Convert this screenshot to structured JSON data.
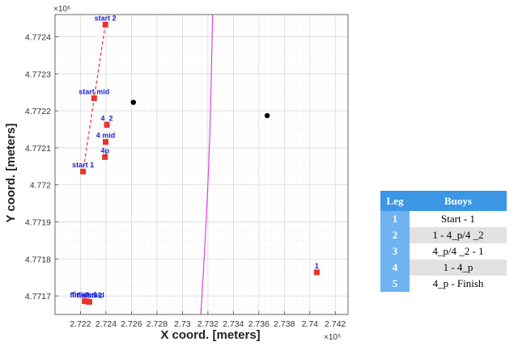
{
  "chart_data": {
    "type": "scatter",
    "xlabel": "X coord. [meters]",
    "ylabel": "Y coord. [meters]",
    "x_exponent_label": "×10⁵",
    "y_exponent_label": "×10⁶",
    "xlim": [
      272000,
      274300
    ],
    "ylim": [
      4771650,
      4772460
    ],
    "x_ticks": [
      272200,
      272400,
      272600,
      272800,
      273000,
      273200,
      273400,
      273600,
      273800,
      274000,
      274200
    ],
    "x_tick_labels": [
      "2.722",
      "2.724",
      "2.726",
      "2.728",
      "2.73",
      "2.732",
      "2.734",
      "2.736",
      "2.738",
      "2.74",
      "2.742"
    ],
    "y_ticks": [
      4771700,
      4771800,
      4771900,
      4772000,
      4772100,
      4772200,
      4772300,
      4772400
    ],
    "y_tick_labels": [
      "4.7717",
      "4.7718",
      "4.7719",
      "4.772",
      "4.7721",
      "4.7722",
      "4.7723",
      "4.7724"
    ],
    "grid": true,
    "buoys": [
      {
        "label": "start 2",
        "x": 272395,
        "y": 4772433
      },
      {
        "label": "start mid",
        "x": 272307,
        "y": 4772234
      },
      {
        "label": "start 1",
        "x": 272220,
        "y": 4772036
      },
      {
        "label": "4_2",
        "x": 272407,
        "y": 4772162
      },
      {
        "label": "4 mid",
        "x": 272397,
        "y": 4772116
      },
      {
        "label": "4p",
        "x": 272392,
        "y": 4772075
      },
      {
        "label": "finish 1",
        "x": 272233,
        "y": 4771686
      },
      {
        "label": "finish 2",
        "x": 272270,
        "y": 4771684
      },
      {
        "label": "finish mid",
        "x": 272252,
        "y": 4771685
      },
      {
        "label": "1",
        "x": 274055,
        "y": 4771764
      }
    ],
    "start_line": {
      "from": [
        272395,
        4772433
      ],
      "to": [
        272220,
        4772036
      ]
    },
    "black_points": [
      {
        "x": 272615,
        "y": 4772223
      },
      {
        "x": 273665,
        "y": 4772187
      }
    ],
    "boundary_curve": {
      "x": [
        273237,
        273230,
        273224,
        273216,
        273206,
        273193,
        273178,
        273162,
        273144
      ],
      "y": [
        4772460,
        4772350,
        4772250,
        4772150,
        4772050,
        4771950,
        4771850,
        4771750,
        4771650
      ]
    },
    "colors": {
      "buoy": "#e8352b",
      "label": "#1a22d6",
      "start_line": "#e8352b",
      "curve": "#e040e8",
      "point": "#000000",
      "grid": "#d4d4d4"
    }
  },
  "legend_table": {
    "header": {
      "leg": "Leg",
      "buoys": "Buoys"
    },
    "rows": [
      {
        "leg": "1",
        "buoys": "Start - 1"
      },
      {
        "leg": "2",
        "buoys": "1 - 4_p/4 _2"
      },
      {
        "leg": "3",
        "buoys": "4_p/4 _2 - 1"
      },
      {
        "leg": "4",
        "buoys": "1 - 4_p"
      },
      {
        "leg": "5",
        "buoys": "4_p - Finish"
      }
    ]
  }
}
